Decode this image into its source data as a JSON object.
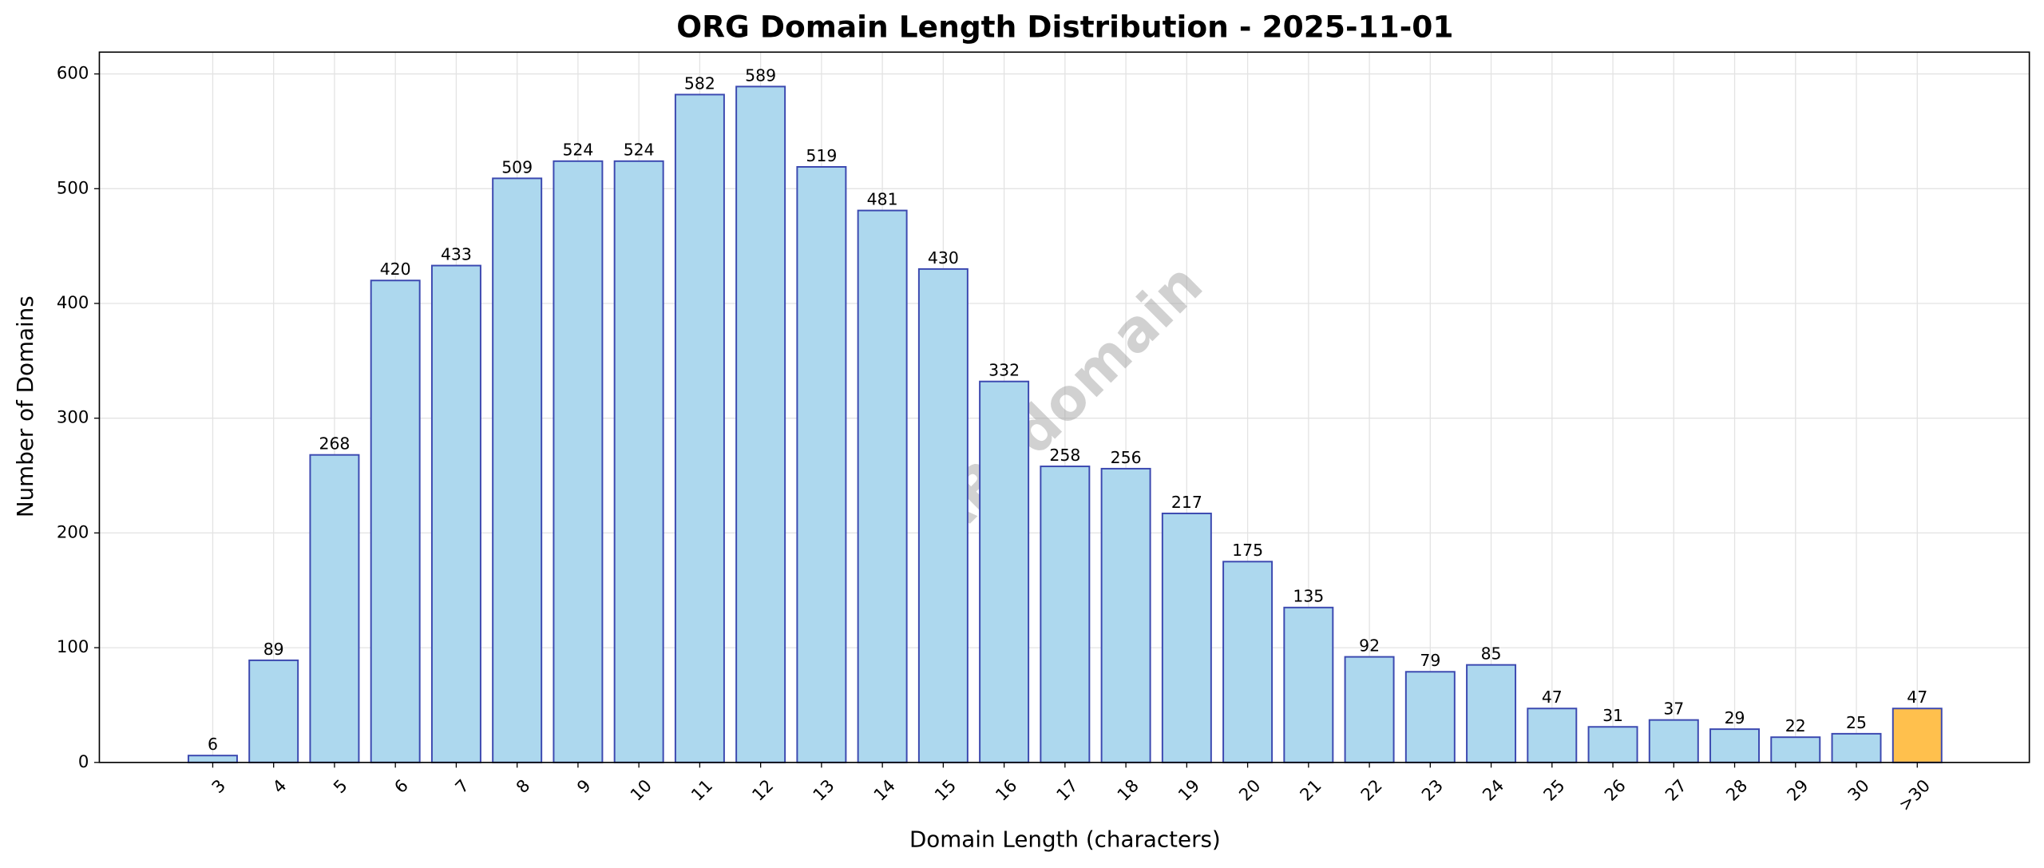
{
  "chart_data": {
    "type": "bar",
    "title": "ORG Domain Length Distribution - 2025-11-01",
    "x_label": "Domain Length (characters)",
    "y_label": "Number of Domains",
    "watermark": "ABTdomain",
    "categories": [
      "3",
      "4",
      "5",
      "6",
      "7",
      "8",
      "9",
      "10",
      "11",
      "12",
      "13",
      "14",
      "15",
      "16",
      "17",
      "18",
      "19",
      "20",
      "21",
      "22",
      "23",
      "24",
      "25",
      "26",
      "27",
      "28",
      "29",
      "30",
      ">30"
    ],
    "values": [
      6,
      89,
      268,
      420,
      433,
      509,
      524,
      524,
      582,
      589,
      519,
      481,
      430,
      332,
      258,
      256,
      217,
      175,
      135,
      92,
      79,
      85,
      47,
      31,
      37,
      29,
      22,
      25,
      47
    ],
    "colors": [
      "#add8ee",
      "#add8ee",
      "#add8ee",
      "#add8ee",
      "#add8ee",
      "#add8ee",
      "#add8ee",
      "#add8ee",
      "#add8ee",
      "#add8ee",
      "#add8ee",
      "#add8ee",
      "#add8ee",
      "#add8ee",
      "#add8ee",
      "#add8ee",
      "#add8ee",
      "#add8ee",
      "#add8ee",
      "#add8ee",
      "#add8ee",
      "#add8ee",
      "#add8ee",
      "#add8ee",
      "#add8ee",
      "#add8ee",
      "#add8ee",
      "#add8ee",
      "#ffc04d"
    ],
    "edge_color": "#3b48b0",
    "ylim": [
      0,
      619
    ],
    "yticks": [
      0,
      100,
      200,
      300,
      400,
      500,
      600
    ],
    "grid": true
  }
}
